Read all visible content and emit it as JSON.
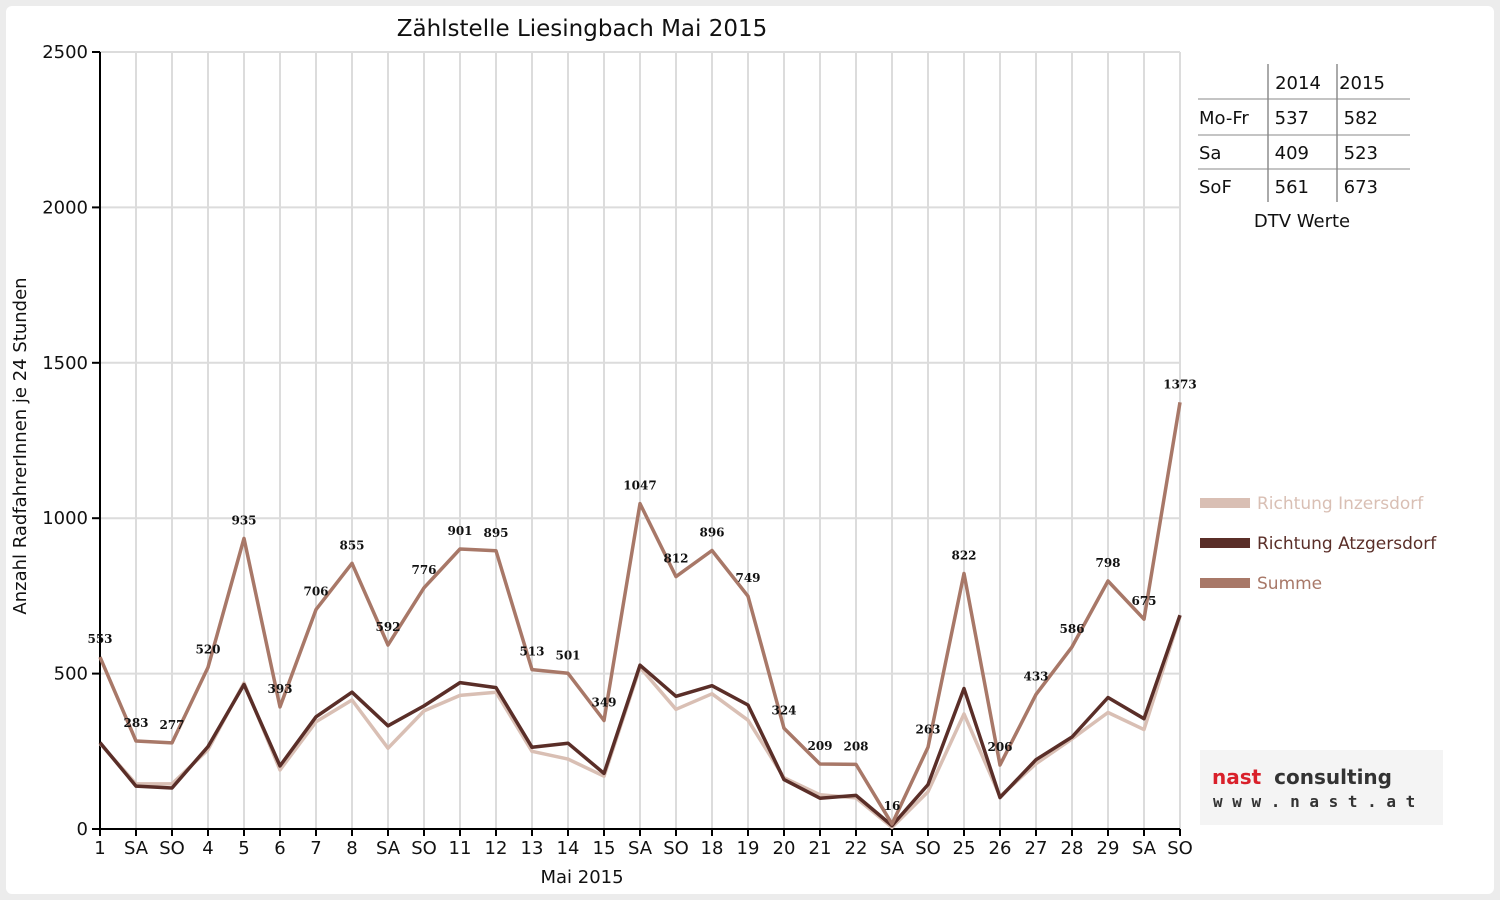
{
  "chart_data": {
    "type": "line",
    "title": "Zählstelle Liesingbach Mai 2015",
    "xlabel": "Mai 2015",
    "ylabel": "Anzahl RadfahrerInnen je 24 Stunden",
    "ylim": [
      0,
      2500
    ],
    "yticks": [
      "0",
      "500",
      "1000",
      "1500",
      "2000",
      "2500"
    ],
    "grid": true,
    "legend_position": "right",
    "categories": [
      "1",
      "SA",
      "SO",
      "4",
      "5",
      "6",
      "7",
      "8",
      "SA",
      "SO",
      "11",
      "12",
      "13",
      "14",
      "15",
      "SA",
      "SO",
      "18",
      "19",
      "20",
      "21",
      "22",
      "SA",
      "SO",
      "25",
      "26",
      "27",
      "28",
      "29",
      "SA",
      "SO"
    ],
    "highlighted_categories": [
      0,
      2,
      9,
      13,
      16,
      23,
      24,
      30
    ],
    "series": [
      {
        "name": "Richtung Inzersdorf",
        "color": "#d9bfb4",
        "values": [
          275,
          145,
          145,
          255,
          470,
          190,
          345,
          415,
          260,
          380,
          430,
          440,
          250,
          225,
          170,
          520,
          385,
          435,
          350,
          165,
          110,
          100,
          5,
          120,
          370,
          105,
          210,
          290,
          375,
          320,
          685
        ]
      },
      {
        "name": "Richtung Atzgersdorf",
        "color": "#5a2e28",
        "values": [
          278,
          138,
          132,
          265,
          465,
          203,
          361,
          440,
          332,
          396,
          471,
          455,
          263,
          276,
          179,
          527,
          427,
          461,
          399,
          159,
          99,
          108,
          11,
          143,
          452,
          101,
          223,
          296,
          423,
          355,
          688
        ]
      },
      {
        "name": "Summe",
        "color": "#a87868",
        "values": [
          553,
          283,
          277,
          520,
          935,
          393,
          706,
          855,
          592,
          776,
          901,
          895,
          513,
          501,
          349,
          1047,
          812,
          896,
          749,
          324,
          209,
          208,
          16,
          263,
          822,
          206,
          433,
          586,
          798,
          675,
          1373
        ]
      }
    ],
    "data_labels": [
      "553",
      "283",
      "277",
      "520",
      "935",
      "393",
      "706",
      "855",
      "592",
      "776",
      "901",
      "895",
      "513",
      "501",
      "349",
      "1047",
      "812",
      "896",
      "749",
      "324",
      "209",
      "208",
      "16",
      "263",
      "822",
      "206",
      "433",
      "586",
      "798",
      "675",
      "1373"
    ]
  },
  "dtv_table": {
    "caption": "DTV Werte",
    "columns": [
      "2014",
      "2015"
    ],
    "rows": [
      {
        "label": "Mo-Fr",
        "values": [
          "537",
          "582"
        ]
      },
      {
        "label": "Sa",
        "values": [
          "409",
          "523"
        ]
      },
      {
        "label": "SoF",
        "values": [
          "561",
          "673"
        ]
      }
    ]
  },
  "logo": {
    "brand_first": "nast",
    "brand_second": "consulting",
    "url": "w w w . n a s t . a t"
  },
  "colors": {
    "tick_highlight": "#e00000",
    "logo_red": "#d9202a",
    "grid": "#dcdcdc"
  }
}
